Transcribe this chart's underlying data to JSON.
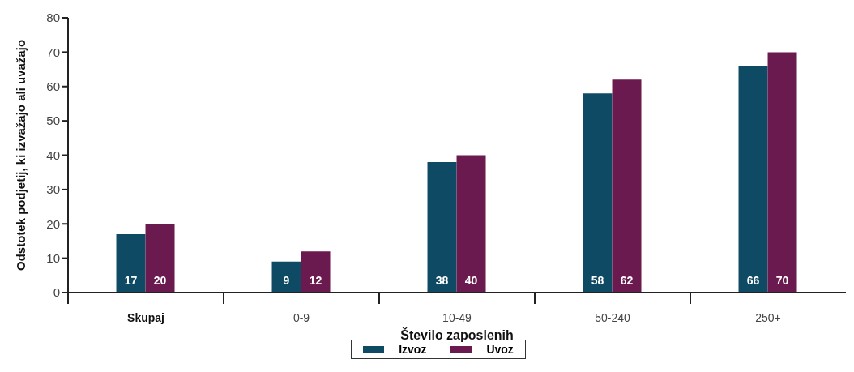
{
  "chart_data": {
    "type": "bar",
    "xlabel": "Število zaposlenih",
    "ylabel": "Odstotek podjetij, ki izvažajo ali uvažajo",
    "categories": [
      "Skupaj",
      "0-9",
      "10-49",
      "50-240",
      "250+"
    ],
    "series": [
      {
        "name": "Izvoz",
        "color": "#0e4a63",
        "values": [
          17,
          9,
          38,
          58,
          66
        ]
      },
      {
        "name": "Uvoz",
        "color": "#6a1a4e",
        "values": [
          20,
          12,
          40,
          62,
          70
        ]
      }
    ],
    "ylim": [
      0,
      80
    ],
    "yticks": [
      0,
      10,
      20,
      30,
      40,
      50,
      60,
      70,
      80
    ],
    "grid": false,
    "legend": "bottom",
    "data_labels": true
  }
}
